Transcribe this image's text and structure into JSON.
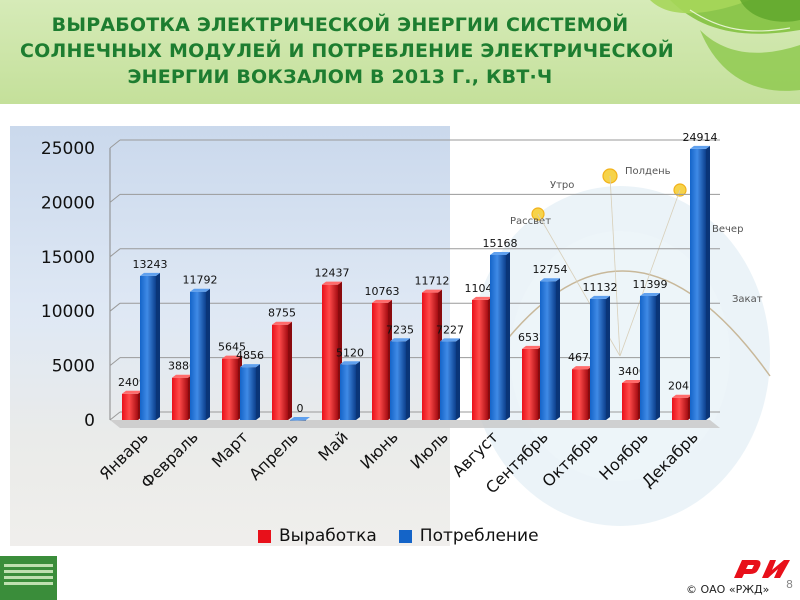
{
  "header": {
    "title_lines": [
      "ВЫРАБОТКА ЭЛЕКТРИЧЕСКОЙ ЭНЕРГИИ СИСТЕМОЙ",
      "СОЛНЕЧНЫХ МОДУЛЕЙ И ПОТРЕБЛЕНИЕ ЭЛЕКТРИЧЕСКОЙ",
      "ЭНЕРГИИ ВОКЗАЛОМ  В 2013 Г., КВТ·Ч"
    ]
  },
  "sun_diagram": {
    "labels": [
      "Утро",
      "Полдень",
      "Рассвет",
      "Вечер",
      "Закат"
    ]
  },
  "chart_data": {
    "type": "bar",
    "categories": [
      "Январь",
      "Февраль",
      "Март",
      "Апрель",
      "Май",
      "Июнь",
      "Июль",
      "Август",
      "Сентябрь",
      "Октябрь",
      "Ноябрь",
      "Декабрь"
    ],
    "series": [
      {
        "name": "Выработка",
        "color": "#e8101a",
        "values": [
          2409,
          3886,
          5645,
          8755,
          12437,
          10763,
          11712,
          11041,
          6532,
          4674,
          3400,
          2047
        ]
      },
      {
        "name": "Потребление",
        "color": "#1464c8",
        "values": [
          13243,
          11792,
          4856,
          0,
          5120,
          7235,
          7227,
          15168,
          12754,
          11132,
          11399,
          24914
        ]
      }
    ],
    "y_ticks": [
      "0",
      "5000",
      "10000",
      "15000",
      "20000",
      "25000"
    ],
    "ylim": [
      0,
      25000
    ],
    "grid": true,
    "legend": "bottom"
  },
  "footer": {
    "copyright": "©  ОАО «РЖД»",
    "page_number": "8"
  },
  "colors": {
    "title": "#1d7d30",
    "header_bg": "#cfe7ad",
    "logo": "#e8101a"
  }
}
